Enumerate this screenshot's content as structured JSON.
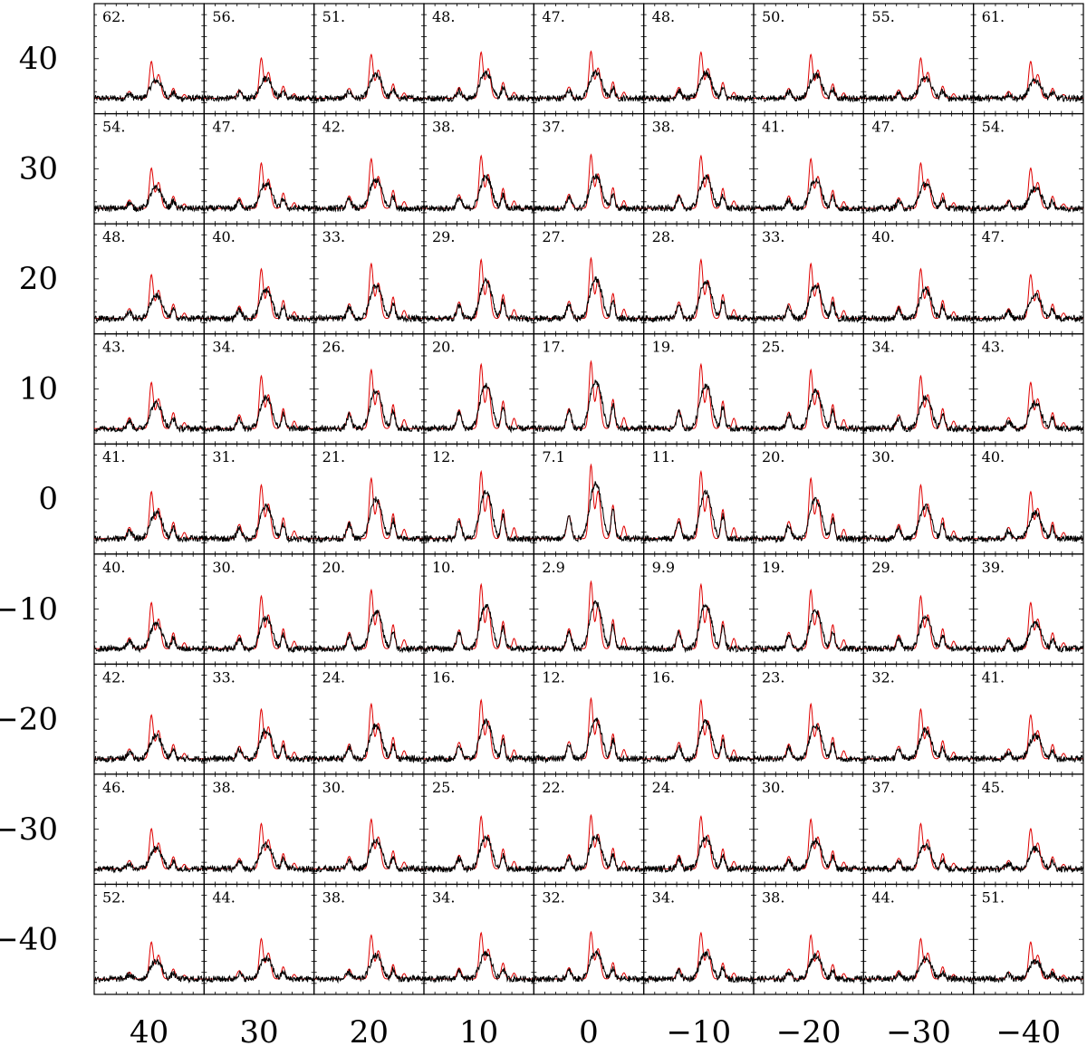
{
  "chart_data": {
    "type": "line",
    "grid_rows": 9,
    "grid_cols": 9,
    "x_tick_labels": [
      "40",
      "30",
      "20",
      "10",
      "0",
      "−10",
      "−20",
      "−30",
      "−40"
    ],
    "y_tick_labels": [
      "40",
      "30",
      "20",
      "10",
      "0",
      "−10",
      "−20",
      "−30",
      "−40"
    ],
    "x_offsets": [
      40,
      30,
      20,
      10,
      0,
      -10,
      -20,
      -30,
      -40
    ],
    "y_offsets": [
      40,
      30,
      20,
      10,
      0,
      -10,
      -20,
      -30,
      -40
    ],
    "series_colors": {
      "observed": "#000000",
      "model": "#e00000"
    },
    "panel_labels": [
      [
        "62.",
        "56.",
        "51.",
        "48.",
        "47.",
        "48.",
        "50.",
        "55.",
        "61."
      ],
      [
        "54.",
        "47.",
        "42.",
        "38.",
        "37.",
        "38.",
        "41.",
        "47.",
        "54."
      ],
      [
        "48.",
        "40.",
        "33.",
        "29.",
        "27.",
        "28.",
        "33.",
        "40.",
        "47."
      ],
      [
        "43.",
        "34.",
        "26.",
        "20.",
        "17.",
        "19.",
        "25.",
        "34.",
        "43."
      ],
      [
        "41.",
        "31.",
        "21.",
        "12.",
        "7.1",
        "11.",
        "20.",
        "30.",
        "40."
      ],
      [
        "40.",
        "30.",
        "20.",
        "10.",
        "2.9",
        "9.9",
        "19.",
        "29.",
        "39."
      ],
      [
        "42.",
        "33.",
        "24.",
        "16.",
        "12.",
        "16.",
        "23.",
        "32.",
        "41."
      ],
      [
        "46.",
        "38.",
        "30.",
        "25.",
        "22.",
        "24.",
        "30.",
        "37.",
        "45."
      ],
      [
        "52.",
        "44.",
        "38.",
        "34.",
        "32.",
        "34.",
        "38.",
        "44.",
        "51."
      ]
    ]
  }
}
